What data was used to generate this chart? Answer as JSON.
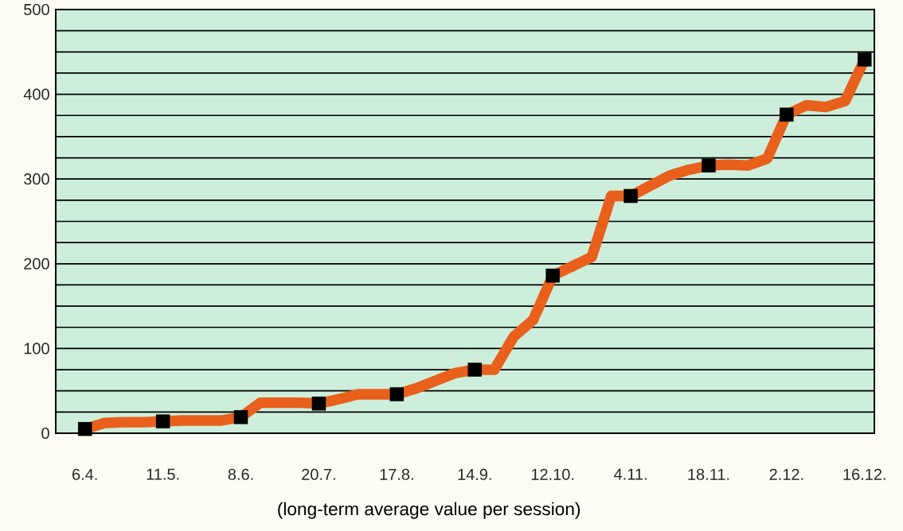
{
  "chart_data": {
    "type": "line",
    "xlabel": "(long-term average value per session)",
    "categories": [
      "6.4.",
      null,
      null,
      null,
      "11.5.",
      null,
      null,
      null,
      "8.6.",
      null,
      null,
      null,
      "20.7.",
      null,
      null,
      null,
      "17.8.",
      null,
      null,
      null,
      "14.9.",
      null,
      null,
      null,
      "12.10.",
      null,
      null,
      null,
      "4.11.",
      null,
      null,
      null,
      "18.11.",
      null,
      null,
      null,
      "2.12.",
      null,
      null,
      null,
      "16.12."
    ],
    "series": [
      {
        "color": "#e8601c",
        "marker": "none",
        "line_style": "solid",
        "values": [
          5,
          12,
          13,
          13,
          14,
          15,
          15,
          15,
          19,
          36,
          36,
          36,
          35,
          40,
          46,
          46,
          46,
          53,
          62,
          71,
          75,
          75,
          114,
          134,
          186,
          197,
          208,
          280,
          280,
          292,
          304,
          311,
          316,
          317,
          316,
          324,
          376,
          387,
          385,
          392,
          441
        ]
      },
      {
        "type": "scatter",
        "color": "#000000",
        "marker": "square",
        "x": [
          "6.4.",
          "11.5.",
          "8.6.",
          "20.7.",
          "17.8.",
          "14.9.",
          "12.10.",
          "4.11.",
          "18.11.",
          "2.12.",
          "16.12."
        ],
        "values": [
          5,
          14,
          19,
          35,
          46,
          75,
          186,
          280,
          316,
          376,
          441
        ]
      }
    ],
    "ylim": [
      0,
      500
    ],
    "yticks": [
      0,
      {
        "value": 25,
        "label": null
      },
      {
        "value": 50,
        "label": null
      },
      {
        "value": 75,
        "label": null
      },
      100,
      {
        "value": 125,
        "label": null
      },
      {
        "value": 150,
        "label": null
      },
      {
        "value": 175,
        "label": null
      },
      200,
      {
        "value": 225,
        "label": null
      },
      {
        "value": 250,
        "label": null
      },
      {
        "value": 275,
        "label": null
      },
      300,
      {
        "value": 325,
        "label": null
      },
      {
        "value": 350,
        "label": null
      },
      {
        "value": 375,
        "label": null
      },
      400,
      {
        "value": 425,
        "label": null
      },
      {
        "value": 450,
        "label": null
      },
      {
        "value": 475,
        "label": null
      },
      500
    ],
    "grid": "y"
  }
}
